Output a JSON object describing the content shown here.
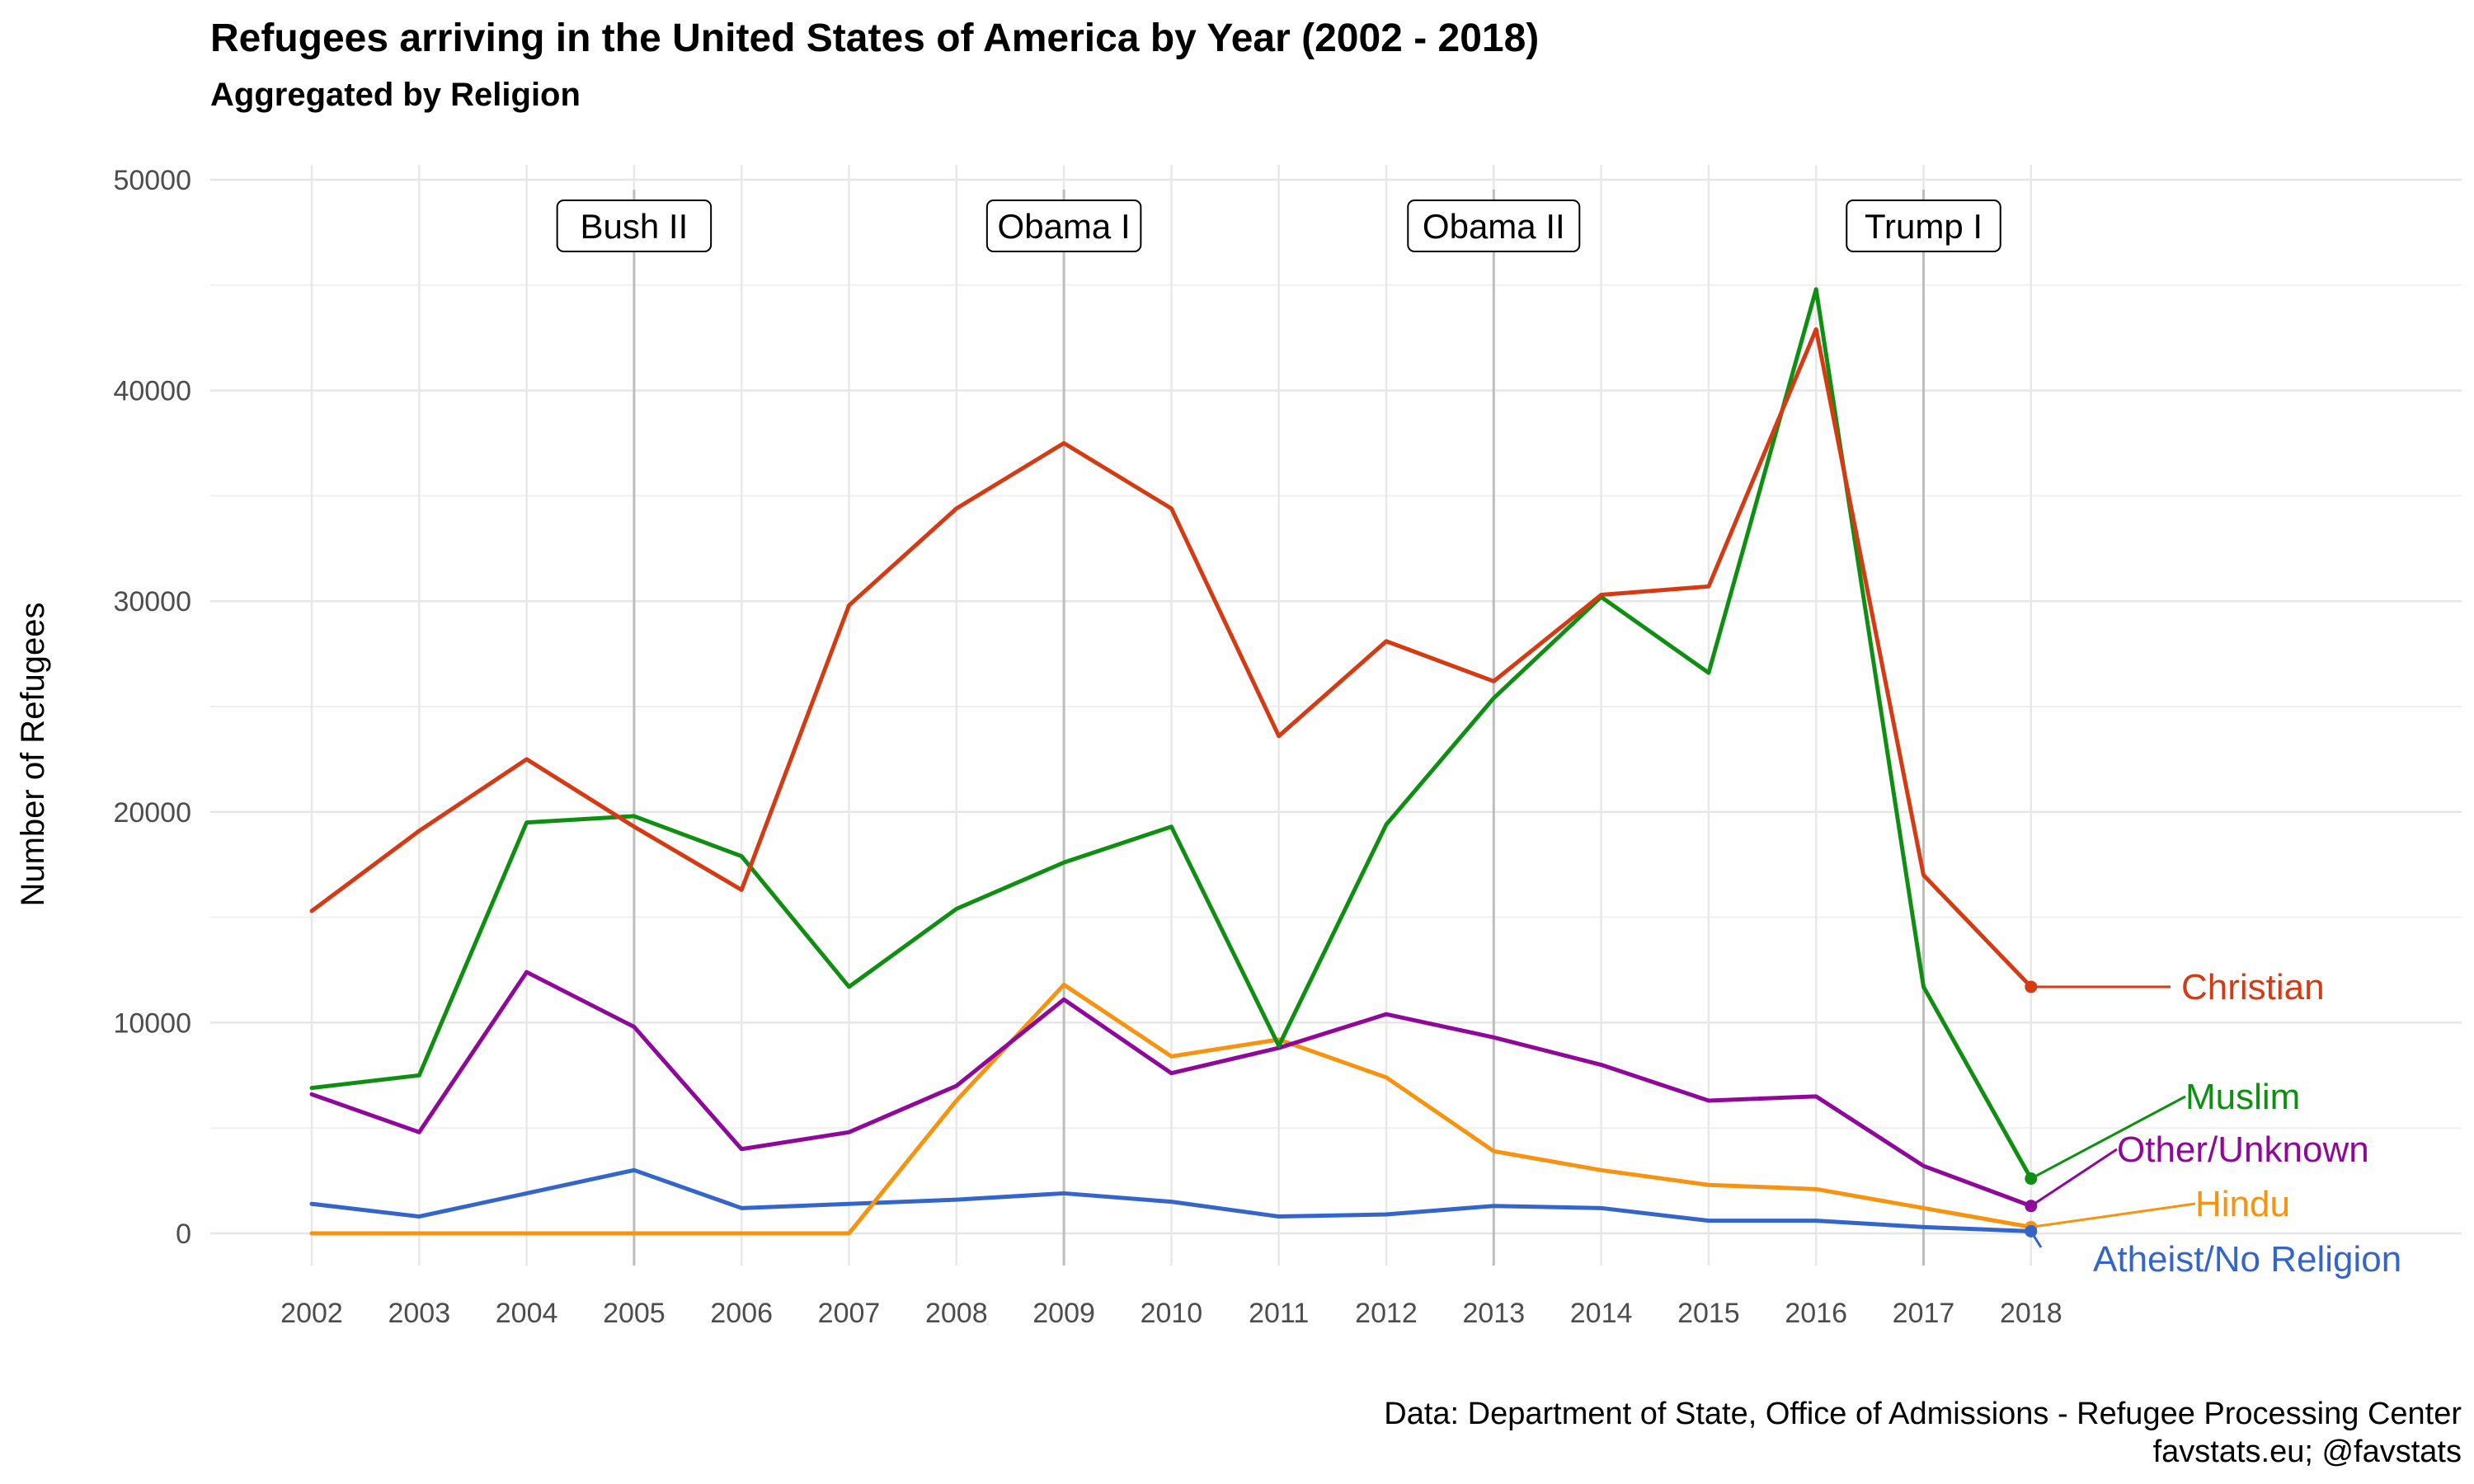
{
  "title": "Refugees arriving in the United States of America by Year (2002 - 2018)",
  "subtitle": "Aggregated by Religion",
  "caption_line1": "Data: Department of State, Office of Admissions - Refugee Processing Center",
  "caption_line2": "favstats.eu; @favstats",
  "chart_data": {
    "type": "line",
    "x": [
      2002,
      2003,
      2004,
      2005,
      2006,
      2007,
      2008,
      2009,
      2010,
      2011,
      2012,
      2013,
      2014,
      2015,
      2016,
      2017,
      2018
    ],
    "xlim": [
      2002,
      2018
    ],
    "ylim": [
      0,
      50000
    ],
    "yticks": [
      0,
      10000,
      20000,
      30000,
      40000,
      50000
    ],
    "ylabel": "Number of Refugees",
    "xlabel": "",
    "grid": true,
    "legend": "direct labels at right end of lines",
    "series": [
      {
        "name": "Christian",
        "color": "#d63a13",
        "values": [
          15300,
          19100,
          22500,
          19300,
          16300,
          29800,
          34400,
          37500,
          34400,
          23600,
          28100,
          26200,
          30300,
          30700,
          42900,
          17000,
          11700
        ]
      },
      {
        "name": "Muslim",
        "color": "#0f8f12",
        "values": [
          6900,
          7500,
          19500,
          19800,
          17900,
          11700,
          15400,
          17600,
          19300,
          8900,
          19400,
          25400,
          30200,
          26600,
          44800,
          11700,
          2600
        ]
      },
      {
        "name": "Other/Unknown",
        "color": "#90089a",
        "values": [
          6600,
          4800,
          12400,
          9800,
          4000,
          4800,
          7000,
          11100,
          7600,
          8800,
          10400,
          9300,
          8000,
          6300,
          6500,
          3200,
          1300
        ]
      },
      {
        "name": "Hindu",
        "color": "#f7930e",
        "values": [
          0,
          0,
          0,
          0,
          0,
          0,
          6300,
          11800,
          8400,
          9200,
          7400,
          3900,
          3000,
          2300,
          2100,
          1200,
          300
        ]
      },
      {
        "name": "Atheist/No Religion",
        "color": "#3465c9",
        "values": [
          1400,
          800,
          1900,
          3000,
          1200,
          1400,
          1600,
          1900,
          1500,
          800,
          900,
          1300,
          1200,
          600,
          600,
          300,
          100
        ]
      }
    ],
    "annotations": [
      {
        "label": "Bush II",
        "x": 2005
      },
      {
        "label": "Obama I",
        "x": 2009
      },
      {
        "label": "Obama II",
        "x": 2013
      },
      {
        "label": "Trump I",
        "x": 2017
      }
    ]
  }
}
